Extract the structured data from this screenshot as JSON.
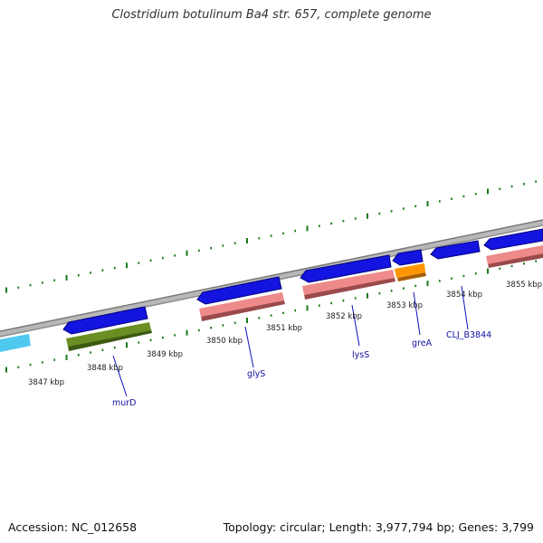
{
  "title": "Clostridium botulinum Ba4 str. 657, complete genome",
  "footer": {
    "accession": "Accession: NC_012658",
    "summary": "Topology: circular; Length: 3,977,794 bp; Genes: 3,799"
  },
  "scale": {
    "unit": "kbp",
    "ticks": [
      "3847 kbp",
      "3848 kbp",
      "3849 kbp",
      "3850 kbp",
      "3851 kbp",
      "3852 kbp",
      "3853 kbp",
      "3854 kbp",
      "3855 kbp"
    ]
  },
  "gene_labels": [
    "murD",
    "glyS",
    "lysS",
    "greA",
    "CLJ_B3844"
  ],
  "colors": {
    "backbone": "#8a8a8a",
    "tick_marks": "#1a7a1a",
    "forward_cds": "#1414e0",
    "forward_edge": "#000080",
    "cyan_feature": "#4fc8f0",
    "pink_feature": "#ee8a8a",
    "pink_shadow": "#9a4a4a",
    "green_feature": "#6b8e23",
    "green_shadow": "#3d5a14",
    "orange_feature": "#ff9500",
    "orange_shadow": "#a85e00",
    "label_text": "#1010a0"
  }
}
